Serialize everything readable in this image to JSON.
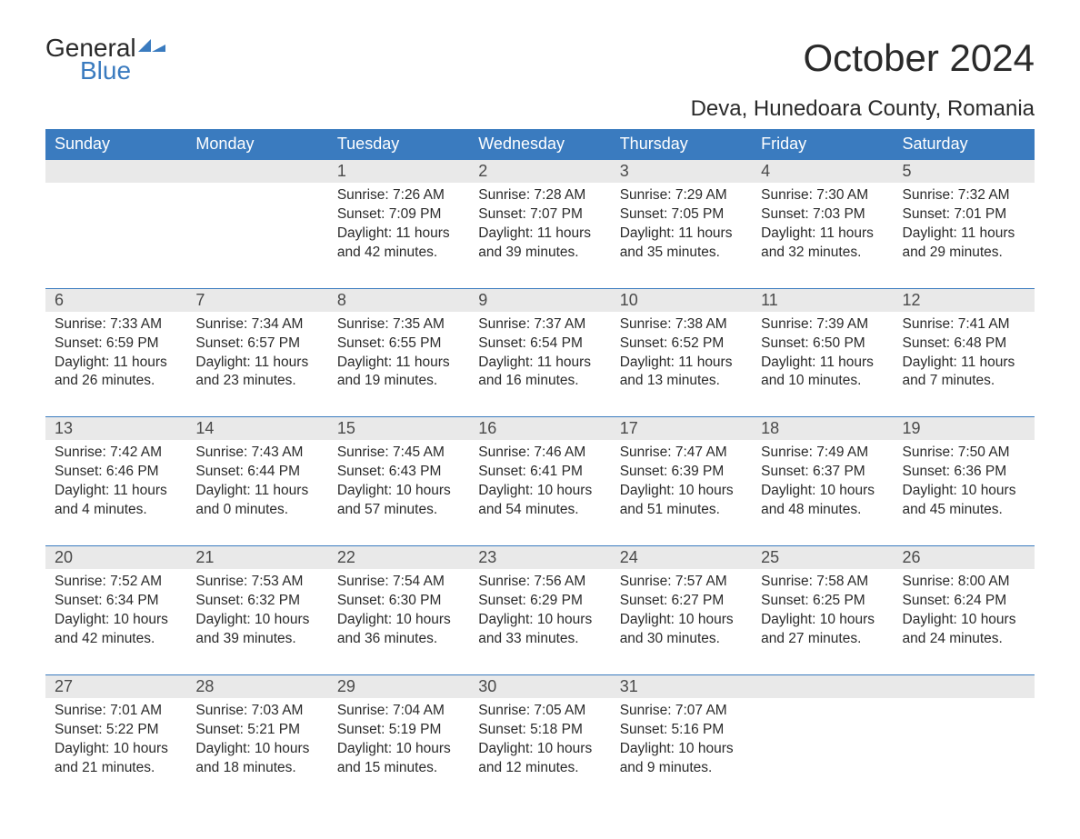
{
  "brand": {
    "line1": "General",
    "line2": "Blue"
  },
  "title": "October 2024",
  "location": "Deva, Hunedoara County, Romania",
  "colors": {
    "header_bg": "#3a7bbf",
    "header_text": "#ffffff",
    "daynum_bg": "#e9e9e9",
    "daynum_border": "#3a7bbf",
    "body_text": "#2a2a2a",
    "page_bg": "#ffffff"
  },
  "layout": {
    "columns": 7,
    "weeks": 5
  },
  "day_headers": [
    "Sunday",
    "Monday",
    "Tuesday",
    "Wednesday",
    "Thursday",
    "Friday",
    "Saturday"
  ],
  "weeks": [
    [
      null,
      null,
      {
        "n": "1",
        "sunrise": "Sunrise: 7:26 AM",
        "sunset": "Sunset: 7:09 PM",
        "d1": "Daylight: 11 hours",
        "d2": "and 42 minutes."
      },
      {
        "n": "2",
        "sunrise": "Sunrise: 7:28 AM",
        "sunset": "Sunset: 7:07 PM",
        "d1": "Daylight: 11 hours",
        "d2": "and 39 minutes."
      },
      {
        "n": "3",
        "sunrise": "Sunrise: 7:29 AM",
        "sunset": "Sunset: 7:05 PM",
        "d1": "Daylight: 11 hours",
        "d2": "and 35 minutes."
      },
      {
        "n": "4",
        "sunrise": "Sunrise: 7:30 AM",
        "sunset": "Sunset: 7:03 PM",
        "d1": "Daylight: 11 hours",
        "d2": "and 32 minutes."
      },
      {
        "n": "5",
        "sunrise": "Sunrise: 7:32 AM",
        "sunset": "Sunset: 7:01 PM",
        "d1": "Daylight: 11 hours",
        "d2": "and 29 minutes."
      }
    ],
    [
      {
        "n": "6",
        "sunrise": "Sunrise: 7:33 AM",
        "sunset": "Sunset: 6:59 PM",
        "d1": "Daylight: 11 hours",
        "d2": "and 26 minutes."
      },
      {
        "n": "7",
        "sunrise": "Sunrise: 7:34 AM",
        "sunset": "Sunset: 6:57 PM",
        "d1": "Daylight: 11 hours",
        "d2": "and 23 minutes."
      },
      {
        "n": "8",
        "sunrise": "Sunrise: 7:35 AM",
        "sunset": "Sunset: 6:55 PM",
        "d1": "Daylight: 11 hours",
        "d2": "and 19 minutes."
      },
      {
        "n": "9",
        "sunrise": "Sunrise: 7:37 AM",
        "sunset": "Sunset: 6:54 PM",
        "d1": "Daylight: 11 hours",
        "d2": "and 16 minutes."
      },
      {
        "n": "10",
        "sunrise": "Sunrise: 7:38 AM",
        "sunset": "Sunset: 6:52 PM",
        "d1": "Daylight: 11 hours",
        "d2": "and 13 minutes."
      },
      {
        "n": "11",
        "sunrise": "Sunrise: 7:39 AM",
        "sunset": "Sunset: 6:50 PM",
        "d1": "Daylight: 11 hours",
        "d2": "and 10 minutes."
      },
      {
        "n": "12",
        "sunrise": "Sunrise: 7:41 AM",
        "sunset": "Sunset: 6:48 PM",
        "d1": "Daylight: 11 hours",
        "d2": "and 7 minutes."
      }
    ],
    [
      {
        "n": "13",
        "sunrise": "Sunrise: 7:42 AM",
        "sunset": "Sunset: 6:46 PM",
        "d1": "Daylight: 11 hours",
        "d2": "and 4 minutes."
      },
      {
        "n": "14",
        "sunrise": "Sunrise: 7:43 AM",
        "sunset": "Sunset: 6:44 PM",
        "d1": "Daylight: 11 hours",
        "d2": "and 0 minutes."
      },
      {
        "n": "15",
        "sunrise": "Sunrise: 7:45 AM",
        "sunset": "Sunset: 6:43 PM",
        "d1": "Daylight: 10 hours",
        "d2": "and 57 minutes."
      },
      {
        "n": "16",
        "sunrise": "Sunrise: 7:46 AM",
        "sunset": "Sunset: 6:41 PM",
        "d1": "Daylight: 10 hours",
        "d2": "and 54 minutes."
      },
      {
        "n": "17",
        "sunrise": "Sunrise: 7:47 AM",
        "sunset": "Sunset: 6:39 PM",
        "d1": "Daylight: 10 hours",
        "d2": "and 51 minutes."
      },
      {
        "n": "18",
        "sunrise": "Sunrise: 7:49 AM",
        "sunset": "Sunset: 6:37 PM",
        "d1": "Daylight: 10 hours",
        "d2": "and 48 minutes."
      },
      {
        "n": "19",
        "sunrise": "Sunrise: 7:50 AM",
        "sunset": "Sunset: 6:36 PM",
        "d1": "Daylight: 10 hours",
        "d2": "and 45 minutes."
      }
    ],
    [
      {
        "n": "20",
        "sunrise": "Sunrise: 7:52 AM",
        "sunset": "Sunset: 6:34 PM",
        "d1": "Daylight: 10 hours",
        "d2": "and 42 minutes."
      },
      {
        "n": "21",
        "sunrise": "Sunrise: 7:53 AM",
        "sunset": "Sunset: 6:32 PM",
        "d1": "Daylight: 10 hours",
        "d2": "and 39 minutes."
      },
      {
        "n": "22",
        "sunrise": "Sunrise: 7:54 AM",
        "sunset": "Sunset: 6:30 PM",
        "d1": "Daylight: 10 hours",
        "d2": "and 36 minutes."
      },
      {
        "n": "23",
        "sunrise": "Sunrise: 7:56 AM",
        "sunset": "Sunset: 6:29 PM",
        "d1": "Daylight: 10 hours",
        "d2": "and 33 minutes."
      },
      {
        "n": "24",
        "sunrise": "Sunrise: 7:57 AM",
        "sunset": "Sunset: 6:27 PM",
        "d1": "Daylight: 10 hours",
        "d2": "and 30 minutes."
      },
      {
        "n": "25",
        "sunrise": "Sunrise: 7:58 AM",
        "sunset": "Sunset: 6:25 PM",
        "d1": "Daylight: 10 hours",
        "d2": "and 27 minutes."
      },
      {
        "n": "26",
        "sunrise": "Sunrise: 8:00 AM",
        "sunset": "Sunset: 6:24 PM",
        "d1": "Daylight: 10 hours",
        "d2": "and 24 minutes."
      }
    ],
    [
      {
        "n": "27",
        "sunrise": "Sunrise: 7:01 AM",
        "sunset": "Sunset: 5:22 PM",
        "d1": "Daylight: 10 hours",
        "d2": "and 21 minutes."
      },
      {
        "n": "28",
        "sunrise": "Sunrise: 7:03 AM",
        "sunset": "Sunset: 5:21 PM",
        "d1": "Daylight: 10 hours",
        "d2": "and 18 minutes."
      },
      {
        "n": "29",
        "sunrise": "Sunrise: 7:04 AM",
        "sunset": "Sunset: 5:19 PM",
        "d1": "Daylight: 10 hours",
        "d2": "and 15 minutes."
      },
      {
        "n": "30",
        "sunrise": "Sunrise: 7:05 AM",
        "sunset": "Sunset: 5:18 PM",
        "d1": "Daylight: 10 hours",
        "d2": "and 12 minutes."
      },
      {
        "n": "31",
        "sunrise": "Sunrise: 7:07 AM",
        "sunset": "Sunset: 5:16 PM",
        "d1": "Daylight: 10 hours",
        "d2": "and 9 minutes."
      },
      null,
      null
    ]
  ]
}
